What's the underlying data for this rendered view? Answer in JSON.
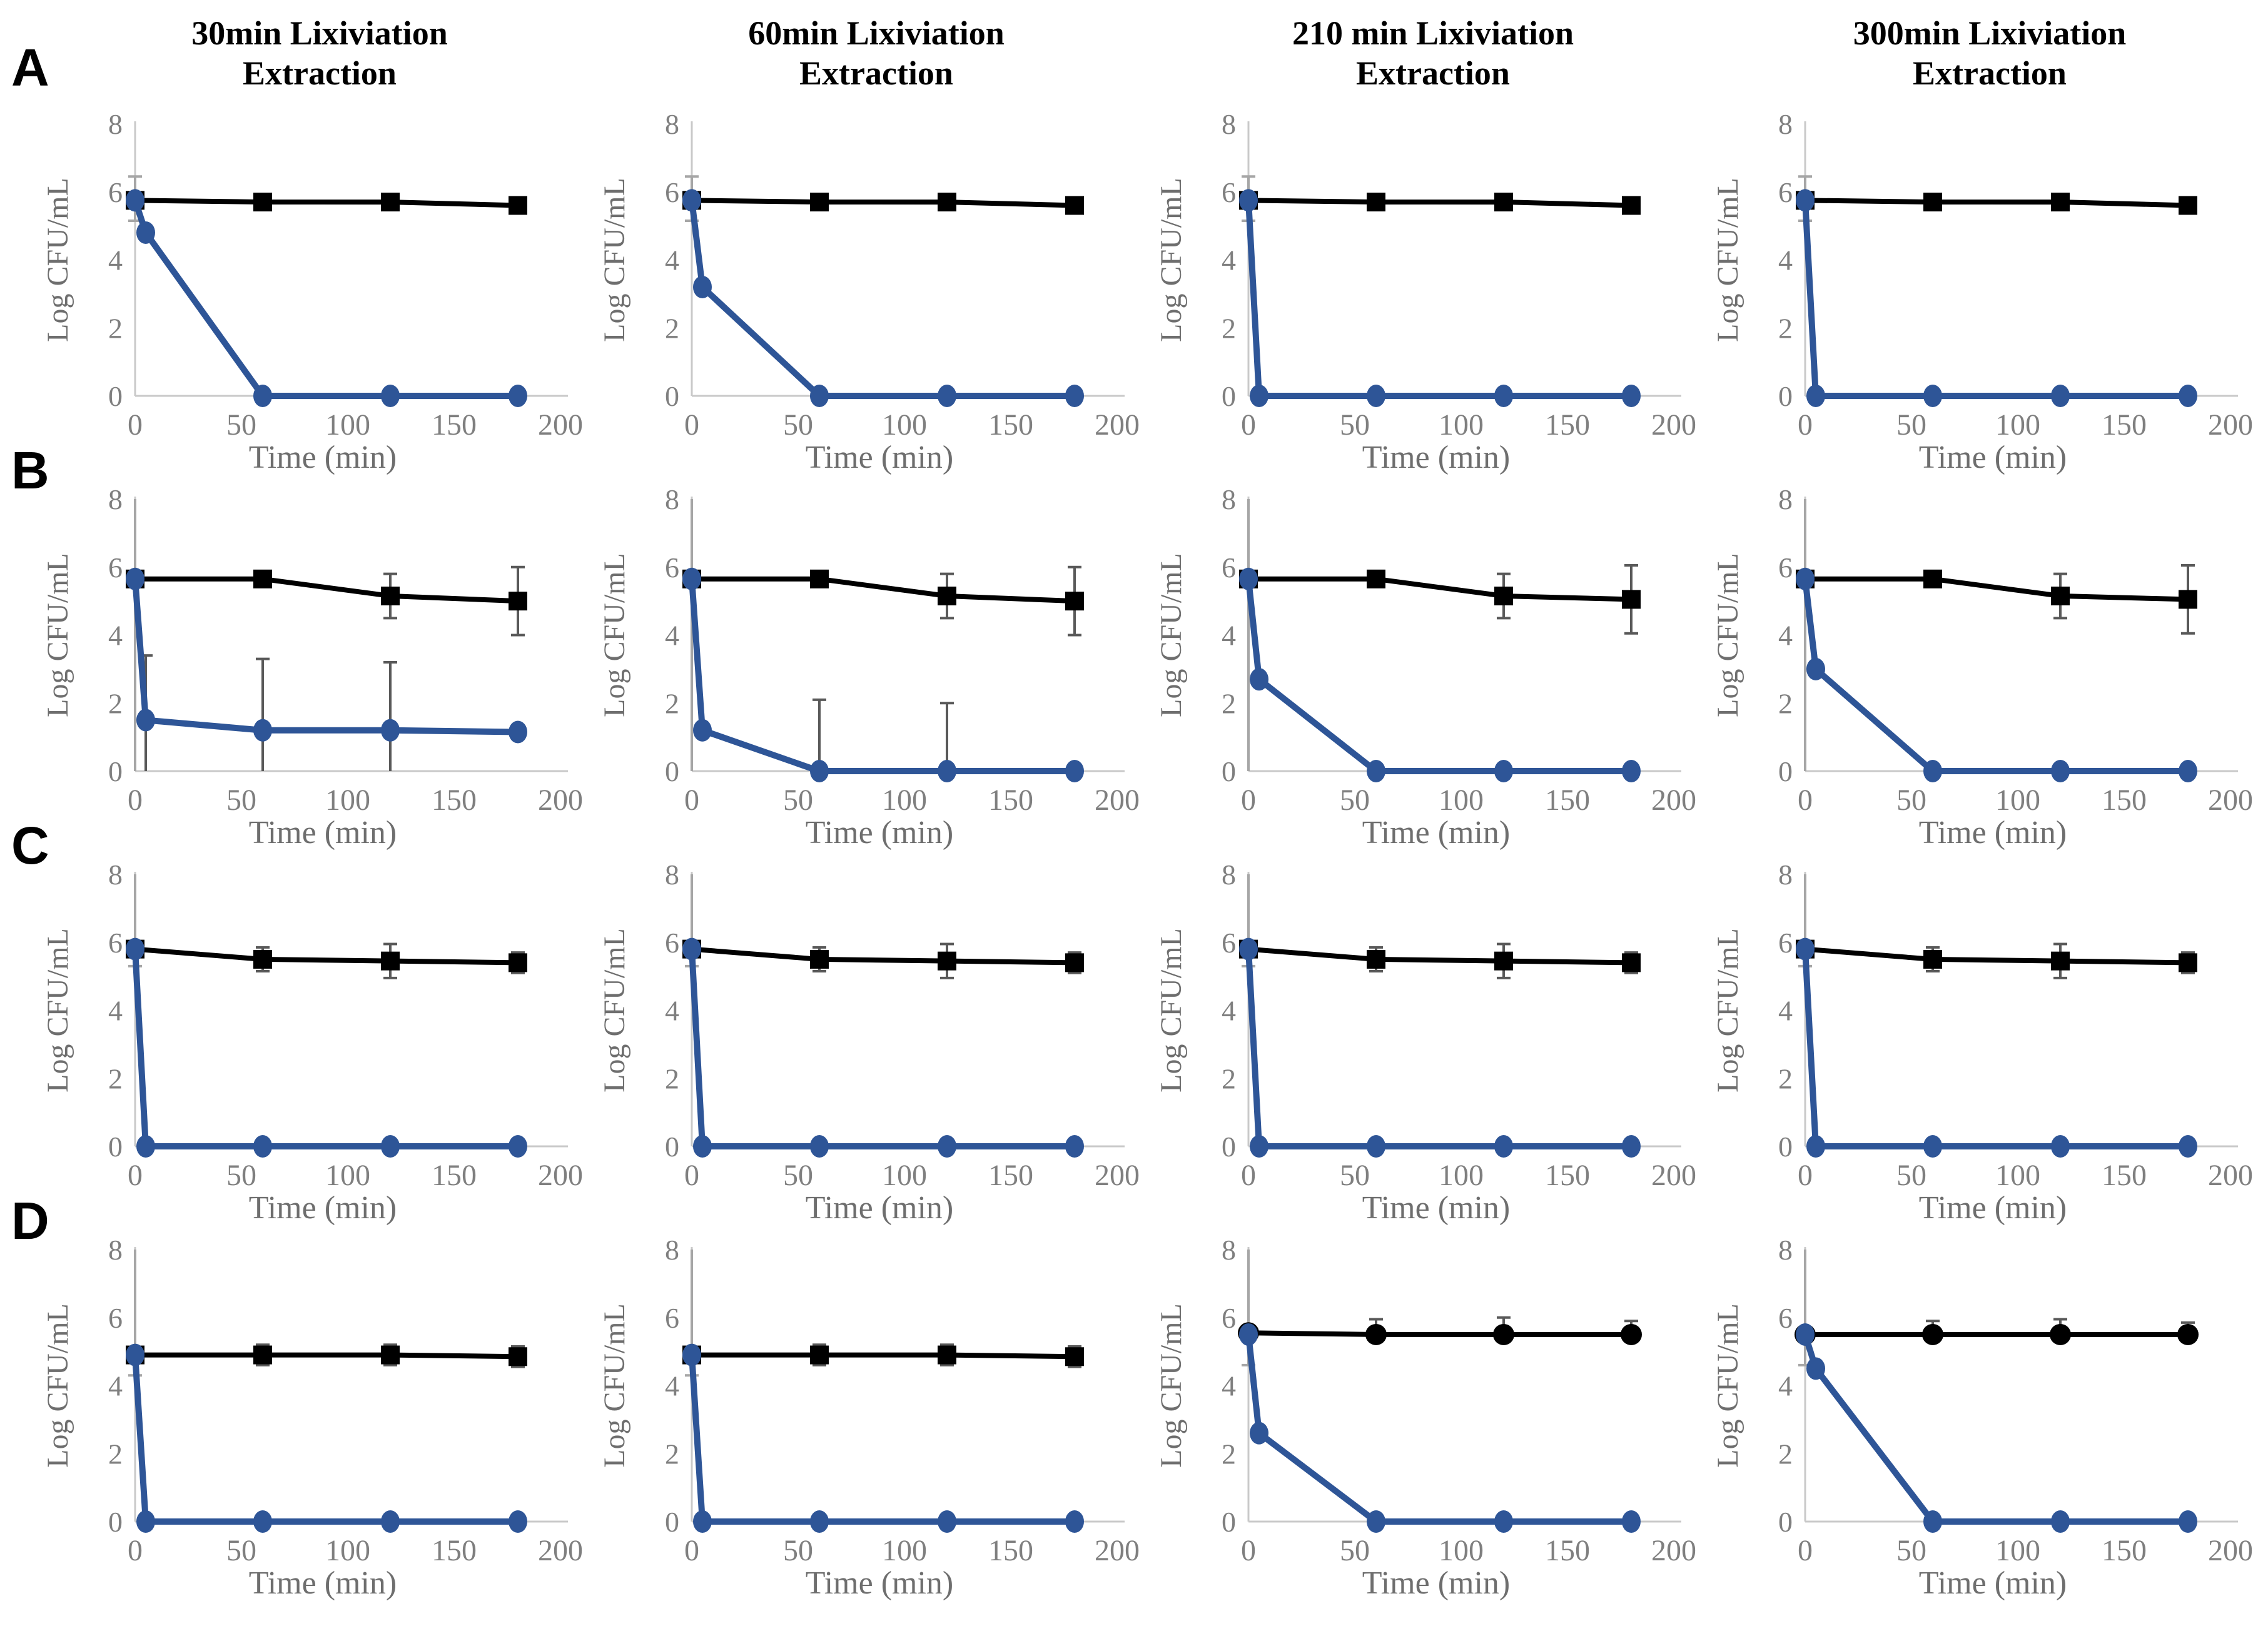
{
  "figure": {
    "panel_labels": [
      "A",
      "B",
      "C",
      "D"
    ],
    "column_titles": [
      "30min Lixiviation Extraction",
      "60min Lixiviation Extraction",
      "210 min Lixiviation Extraction",
      "300min Lixiviation Extraction"
    ]
  },
  "chart_data": {
    "type": "line",
    "xlabel": "Time (min)",
    "ylabel": "Log CFU/mL",
    "xlim": [
      0,
      200
    ],
    "ylim": [
      0,
      8
    ],
    "xticks": [
      0,
      50,
      100,
      150,
      200
    ],
    "yticks": [
      0,
      2,
      4,
      6,
      8
    ],
    "grid": false,
    "legend_position": "none",
    "colors": {
      "control_series": "#000000",
      "treated_series": "#2e5597",
      "error_bar": "#595959",
      "t0_error_bar": "#a6a6a6",
      "axis_line": "#c9c9c9",
      "tick_text": "#7f7f7f",
      "axis_label_text": "#6e6e6e"
    },
    "control_x": [
      0,
      60,
      120,
      180
    ],
    "treated_x": [
      0,
      5,
      60,
      120,
      180
    ],
    "charts": [
      {
        "panel": "A",
        "column": "30min Lixiviation Extraction",
        "control": {
          "marker": "square",
          "err_dir": "both",
          "y": [
            5.75,
            5.7,
            5.7,
            5.6
          ],
          "err": [
            0,
            0,
            0,
            0
          ]
        },
        "treated": {
          "y": [
            5.75,
            4.8,
            0,
            0,
            0
          ],
          "err_up": [
            0,
            0,
            0,
            0,
            0
          ]
        },
        "t0_bar": [
          5.15,
          6.45
        ]
      },
      {
        "panel": "A",
        "column": "60min Lixiviation Extraction",
        "control": {
          "marker": "square",
          "err_dir": "both",
          "y": [
            5.75,
            5.7,
            5.7,
            5.6
          ],
          "err": [
            0,
            0,
            0,
            0
          ]
        },
        "treated": {
          "y": [
            5.75,
            3.2,
            0,
            0,
            0
          ],
          "err_up": [
            0,
            0,
            0,
            0,
            0
          ]
        },
        "t0_bar": [
          5.15,
          6.45
        ]
      },
      {
        "panel": "A",
        "column": "210 min Lixiviation Extraction",
        "control": {
          "marker": "square",
          "err_dir": "both",
          "y": [
            5.75,
            5.7,
            5.7,
            5.6
          ],
          "err": [
            0,
            0,
            0,
            0
          ]
        },
        "treated": {
          "y": [
            5.75,
            0,
            0,
            0,
            0
          ],
          "err_up": [
            0,
            0,
            0,
            0,
            0
          ]
        },
        "t0_bar": [
          5.15,
          6.45
        ]
      },
      {
        "panel": "A",
        "column": "300min Lixiviation Extraction",
        "control": {
          "marker": "square",
          "err_dir": "both",
          "y": [
            5.75,
            5.7,
            5.7,
            5.6
          ],
          "err": [
            0,
            0,
            0,
            0
          ]
        },
        "treated": {
          "y": [
            5.75,
            0,
            0,
            0,
            0
          ],
          "err_up": [
            0,
            0,
            0,
            0,
            0
          ]
        },
        "t0_bar": [
          5.15,
          6.45
        ]
      },
      {
        "panel": "B",
        "column": "30min Lixiviation Extraction",
        "control": {
          "marker": "square",
          "err_dir": "both",
          "y": [
            5.65,
            5.65,
            5.15,
            5.0
          ],
          "err": [
            0,
            0,
            0.65,
            1.0
          ]
        },
        "treated": {
          "y": [
            5.65,
            1.5,
            1.2,
            1.2,
            1.15
          ],
          "err_up": [
            0,
            1.9,
            2.1,
            2.0,
            0
          ]
        },
        "t0_bar": [
          0,
          8
        ]
      },
      {
        "panel": "B",
        "column": "60min Lixiviation Extraction",
        "control": {
          "marker": "square",
          "err_dir": "both",
          "y": [
            5.65,
            5.65,
            5.15,
            5.0
          ],
          "err": [
            0,
            0,
            0.65,
            1.0
          ]
        },
        "treated": {
          "y": [
            5.65,
            1.2,
            0,
            0,
            0
          ],
          "err_up": [
            0,
            0,
            2.1,
            2.0,
            0
          ]
        },
        "t0_bar": [
          0,
          8
        ]
      },
      {
        "panel": "B",
        "column": "210 min Lixiviation Extraction",
        "control": {
          "marker": "square",
          "err_dir": "both",
          "y": [
            5.65,
            5.65,
            5.15,
            5.05
          ],
          "err": [
            0,
            0,
            0.65,
            1.0
          ]
        },
        "treated": {
          "y": [
            5.65,
            2.7,
            0,
            0,
            0
          ],
          "err_up": [
            0,
            0,
            0,
            0,
            0
          ]
        },
        "t0_bar": [
          0,
          8
        ]
      },
      {
        "panel": "B",
        "column": "300min Lixiviation Extraction",
        "control": {
          "marker": "square",
          "err_dir": "both",
          "y": [
            5.65,
            5.65,
            5.15,
            5.05
          ],
          "err": [
            0,
            0,
            0.65,
            1.0
          ]
        },
        "treated": {
          "y": [
            5.65,
            3.0,
            0,
            0,
            0
          ],
          "err_up": [
            0,
            0,
            0,
            0,
            0
          ]
        },
        "t0_bar": [
          0,
          8
        ]
      },
      {
        "panel": "C",
        "column": "30min Lixiviation Extraction",
        "control": {
          "marker": "square",
          "err_dir": "both",
          "y": [
            5.8,
            5.5,
            5.45,
            5.4
          ],
          "err": [
            0,
            0.35,
            0.5,
            0.3
          ]
        },
        "treated": {
          "y": [
            5.8,
            0,
            0,
            0,
            0
          ],
          "err_up": [
            0,
            0,
            0,
            0,
            0
          ]
        },
        "t0_bar": [
          5.3,
          8
        ]
      },
      {
        "panel": "C",
        "column": "60min Lixiviation Extraction",
        "control": {
          "marker": "square",
          "err_dir": "both",
          "y": [
            5.8,
            5.5,
            5.45,
            5.4
          ],
          "err": [
            0,
            0.35,
            0.5,
            0.3
          ]
        },
        "treated": {
          "y": [
            5.8,
            0,
            0,
            0,
            0
          ],
          "err_up": [
            0,
            0,
            0,
            0,
            0
          ]
        },
        "t0_bar": [
          5.3,
          8
        ]
      },
      {
        "panel": "C",
        "column": "210 min Lixiviation Extraction",
        "control": {
          "marker": "square",
          "err_dir": "both",
          "y": [
            5.8,
            5.5,
            5.45,
            5.4
          ],
          "err": [
            0,
            0.35,
            0.5,
            0.3
          ]
        },
        "treated": {
          "y": [
            5.8,
            0,
            0,
            0,
            0
          ],
          "err_up": [
            0,
            0,
            0,
            0,
            0
          ]
        },
        "t0_bar": [
          5.3,
          8
        ]
      },
      {
        "panel": "C",
        "column": "300min Lixiviation Extraction",
        "control": {
          "marker": "square",
          "err_dir": "both",
          "y": [
            5.8,
            5.5,
            5.45,
            5.4
          ],
          "err": [
            0,
            0.35,
            0.5,
            0.3
          ]
        },
        "treated": {
          "y": [
            5.8,
            0,
            0,
            0,
            0
          ],
          "err_up": [
            0,
            0,
            0,
            0,
            0
          ]
        },
        "t0_bar": [
          5.3,
          8
        ]
      },
      {
        "panel": "D",
        "column": "30min Lixiviation Extraction",
        "control": {
          "marker": "square",
          "err_dir": "both",
          "y": [
            4.9,
            4.9,
            4.9,
            4.85
          ],
          "err": [
            0,
            0.3,
            0.3,
            0.3
          ]
        },
        "treated": {
          "y": [
            4.9,
            0,
            0,
            0,
            0
          ],
          "err_up": [
            0,
            0,
            0,
            0,
            0
          ]
        },
        "t0_bar": [
          4.3,
          8
        ]
      },
      {
        "panel": "D",
        "column": "60min Lixiviation Extraction",
        "control": {
          "marker": "square",
          "err_dir": "both",
          "y": [
            4.9,
            4.9,
            4.9,
            4.85
          ],
          "err": [
            0,
            0.3,
            0.3,
            0.3
          ]
        },
        "treated": {
          "y": [
            4.9,
            0,
            0,
            0,
            0
          ],
          "err_up": [
            0,
            0,
            0,
            0,
            0
          ]
        },
        "t0_bar": [
          4.3,
          8
        ]
      },
      {
        "panel": "D",
        "column": "210 min Lixiviation Extraction",
        "control": {
          "marker": "circle",
          "err_dir": "up",
          "y": [
            5.55,
            5.5,
            5.5,
            5.5
          ],
          "err": [
            0,
            0.45,
            0.5,
            0.4
          ]
        },
        "treated": {
          "y": [
            5.5,
            2.6,
            0,
            0,
            0
          ],
          "err_up": [
            0,
            0,
            0,
            0,
            0
          ]
        },
        "t0_bar": [
          4.6,
          8
        ]
      },
      {
        "panel": "D",
        "column": "300min Lixiviation Extraction",
        "control": {
          "marker": "circle",
          "err_dir": "up",
          "y": [
            5.5,
            5.5,
            5.5,
            5.5
          ],
          "err": [
            0,
            0.4,
            0.45,
            0.35
          ]
        },
        "treated": {
          "y": [
            5.5,
            4.5,
            0,
            0,
            0
          ],
          "err_up": [
            0,
            0,
            0,
            0,
            0
          ]
        },
        "t0_bar": [
          4.6,
          8
        ]
      }
    ]
  }
}
